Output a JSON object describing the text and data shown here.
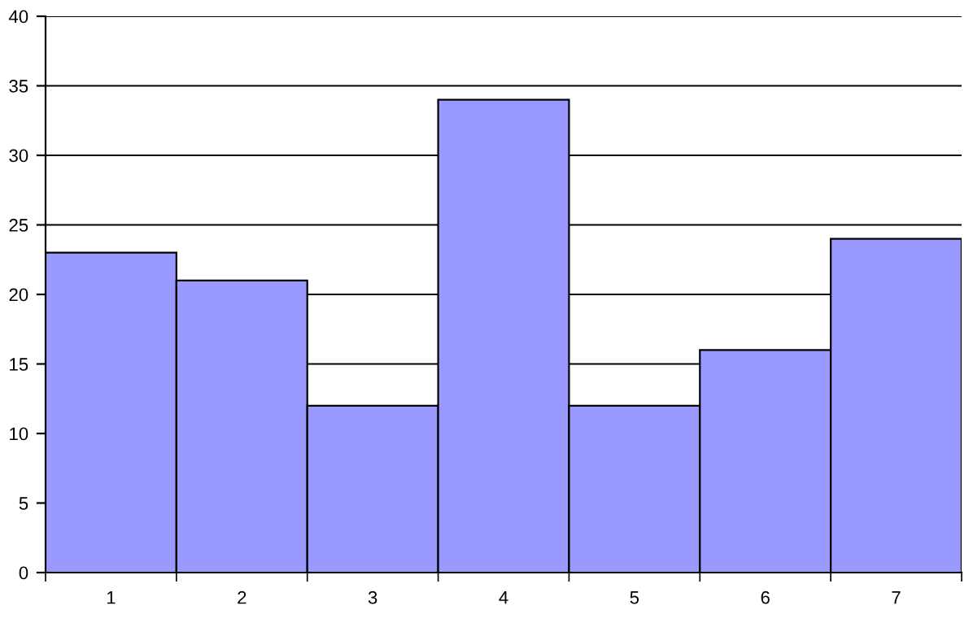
{
  "chart_data": {
    "type": "bar",
    "categories": [
      "1",
      "2",
      "3",
      "4",
      "5",
      "6",
      "7"
    ],
    "values": [
      23,
      21,
      12,
      34,
      12,
      16,
      24
    ],
    "color": "#9999ff",
    "ylim": [
      0,
      40
    ],
    "yticks": [
      0,
      5,
      10,
      15,
      20,
      25,
      30,
      35,
      40
    ],
    "grid": "y",
    "legend": false
  }
}
